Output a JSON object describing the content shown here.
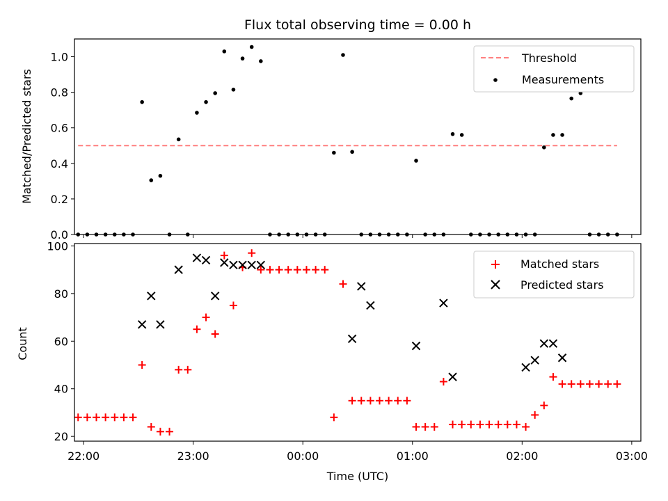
{
  "chart_data": [
    {
      "type": "scatter",
      "title": "Flux total observing time = 0.00 h",
      "xlabel": "",
      "ylabel": "Matched/Predicted stars",
      "x_unit": "time (UTC)",
      "xlim": [
        "21:55",
        "03:05"
      ],
      "ylim": [
        0,
        1.1
      ],
      "y_ticks": [
        0.0,
        0.2,
        0.4,
        0.6,
        0.8,
        1.0
      ],
      "y_tick_labels": [
        "0.0",
        "0.2",
        "0.4",
        "0.6",
        "0.8",
        "1.0"
      ],
      "legend": "top-right",
      "series": [
        {
          "name": "Threshold",
          "kind": "line",
          "style": "dashed",
          "color": "#ff7f7f",
          "x": [
            "21:57",
            "02:52"
          ],
          "y": [
            0.5,
            0.5
          ]
        },
        {
          "name": "Measurements",
          "kind": "scatter",
          "marker": "dot",
          "color": "#000000",
          "x": [
            "21:57",
            "22:02",
            "22:07",
            "22:12",
            "22:17",
            "22:22",
            "22:27",
            "22:32",
            "22:37",
            "22:42",
            "22:47",
            "22:52",
            "22:57",
            "23:02",
            "23:07",
            "23:12",
            "23:17",
            "23:22",
            "23:27",
            "23:32",
            "23:37",
            "23:42",
            "23:47",
            "23:52",
            "23:57",
            "00:02",
            "00:07",
            "00:12",
            "00:17",
            "00:22",
            "00:27",
            "00:32",
            "00:37",
            "00:42",
            "00:47",
            "00:52",
            "00:57",
            "01:02",
            "01:07",
            "01:12",
            "01:17",
            "01:22",
            "01:27",
            "01:32",
            "01:37",
            "01:42",
            "01:47",
            "01:52",
            "01:57",
            "02:02",
            "02:07",
            "02:12",
            "02:17",
            "02:22",
            "02:27",
            "02:32",
            "02:37",
            "02:42",
            "02:47",
            "02:52"
          ],
          "y": [
            0.0,
            0.0,
            0.0,
            0.0,
            0.0,
            0.0,
            0.0,
            0.745,
            0.305,
            0.33,
            0.0,
            0.535,
            0.0,
            0.685,
            0.745,
            0.795,
            1.03,
            0.815,
            0.99,
            1.055,
            0.975,
            0.0,
            0.0,
            0.0,
            0.0,
            0.0,
            0.0,
            0.0,
            0.46,
            1.01,
            0.465,
            0.0,
            0.0,
            0.0,
            0.0,
            0.0,
            0.0,
            0.415,
            0.0,
            0.0,
            0.0,
            0.565,
            0.56,
            0.0,
            0.0,
            0.0,
            0.0,
            0.0,
            0.0,
            0.0,
            0.0,
            0.49,
            0.56,
            0.56,
            0.765,
            0.795,
            0.0,
            0.0,
            0.0,
            0.0
          ]
        }
      ]
    },
    {
      "type": "scatter",
      "title": "",
      "xlabel": "Time (UTC)",
      "ylabel": "Count",
      "xlim": [
        "21:55",
        "03:05"
      ],
      "ylim": [
        18,
        101
      ],
      "x_ticks": [
        "22:00",
        "23:00",
        "00:00",
        "01:00",
        "02:00",
        "03:00"
      ],
      "y_ticks": [
        20,
        40,
        60,
        80,
        100
      ],
      "y_tick_labels": [
        "20",
        "40",
        "60",
        "80",
        "100"
      ],
      "legend": "top-right",
      "series": [
        {
          "name": "Matched stars",
          "kind": "scatter",
          "marker": "plus",
          "color": "#ff0000",
          "x": [
            "21:57",
            "22:02",
            "22:07",
            "22:12",
            "22:17",
            "22:22",
            "22:27",
            "22:32",
            "22:37",
            "22:42",
            "22:47",
            "22:52",
            "22:57",
            "23:02",
            "23:07",
            "23:12",
            "23:17",
            "23:22",
            "23:27",
            "23:32",
            "23:37",
            "23:42",
            "23:47",
            "23:52",
            "23:57",
            "00:02",
            "00:07",
            "00:12",
            "00:17",
            "00:22",
            "00:27",
            "00:32",
            "00:37",
            "00:42",
            "00:47",
            "00:52",
            "00:57",
            "01:02",
            "01:07",
            "01:12",
            "01:17",
            "01:22",
            "01:27",
            "01:32",
            "01:37",
            "01:42",
            "01:47",
            "01:52",
            "01:57",
            "02:02",
            "02:07",
            "02:12",
            "02:17",
            "02:22",
            "02:27",
            "02:32",
            "02:37",
            "02:42",
            "02:47",
            "02:52"
          ],
          "y": [
            28,
            28,
            28,
            28,
            28,
            28,
            28,
            50,
            24,
            22,
            22,
            48,
            48,
            65,
            70,
            63,
            96,
            75,
            91,
            97,
            90,
            90,
            90,
            90,
            90,
            90,
            90,
            90,
            28,
            84,
            35,
            35,
            35,
            35,
            35,
            35,
            35,
            24,
            24,
            24,
            43,
            25,
            25,
            25,
            25,
            25,
            25,
            25,
            25,
            24,
            29,
            33,
            45,
            42,
            42,
            42,
            42,
            42,
            42,
            42
          ]
        },
        {
          "name": "Predicted stars",
          "kind": "scatter",
          "marker": "x",
          "color": "#000000",
          "x": [
            "22:32",
            "22:37",
            "22:42",
            "22:52",
            "23:02",
            "23:07",
            "23:12",
            "23:17",
            "23:22",
            "23:27",
            "23:32",
            "23:37",
            "00:27",
            "00:32",
            "00:37",
            "01:02",
            "01:17",
            "01:22",
            "02:02",
            "02:07",
            "02:12",
            "02:17",
            "02:22"
          ],
          "y": [
            67,
            79,
            67,
            90,
            95,
            94,
            79,
            93,
            92,
            92,
            92,
            92,
            61,
            83,
            75,
            58,
            76,
            45,
            49,
            52,
            59,
            59,
            53
          ]
        }
      ]
    }
  ]
}
